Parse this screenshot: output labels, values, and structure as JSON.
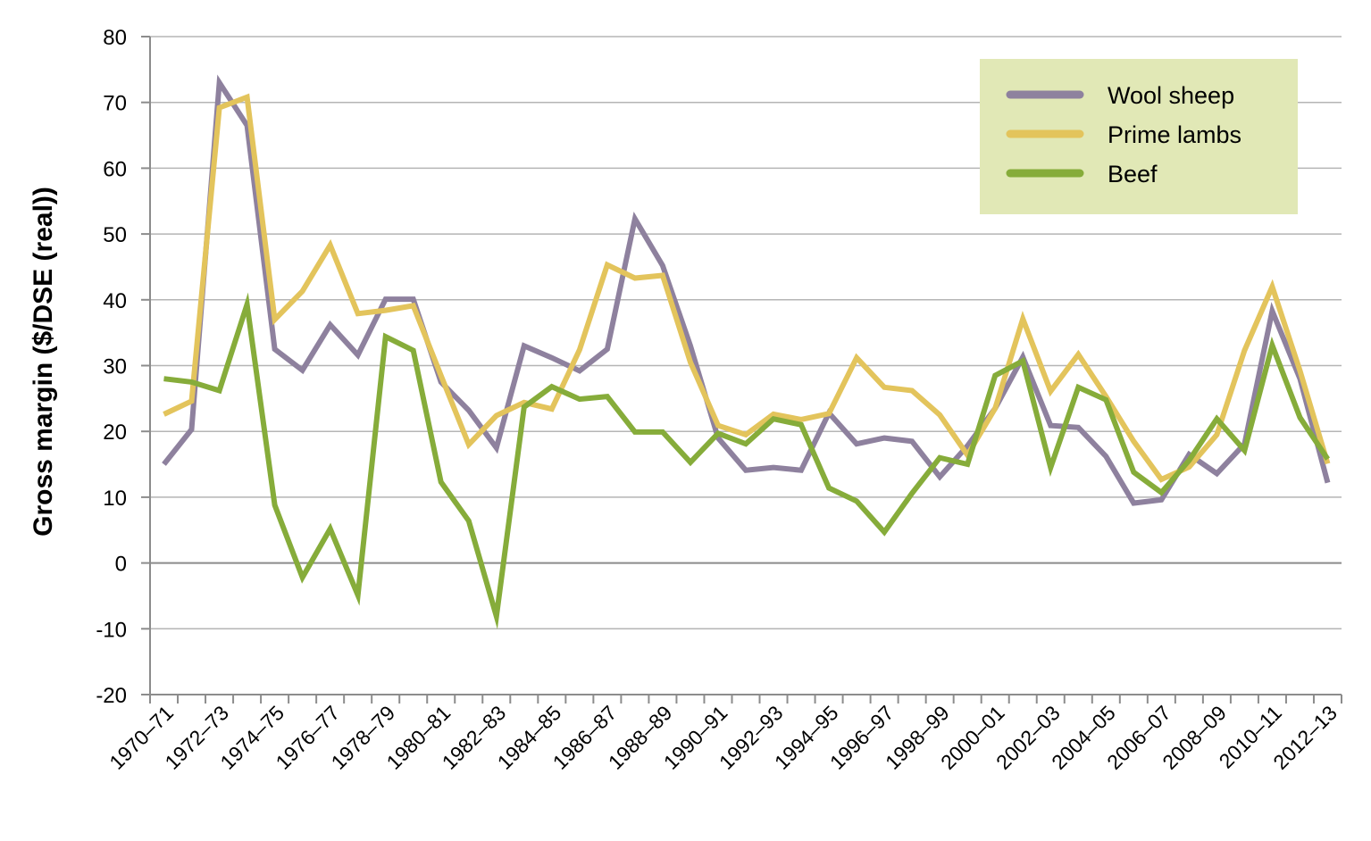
{
  "chart_data": {
    "type": "line",
    "ylabel": "Gross margin ($/DSE (real))",
    "xlabel": "",
    "ylim": [
      -20,
      80
    ],
    "yticks": [
      -20,
      -10,
      0,
      10,
      20,
      30,
      40,
      50,
      60,
      70,
      80
    ],
    "grid": true,
    "legend_position": "top-right",
    "x": [
      "1970–71",
      "1971–72",
      "1972–73",
      "1973–74",
      "1974–75",
      "1975–76",
      "1976–77",
      "1977–78",
      "1978–79",
      "1979–80",
      "1980–81",
      "1981–82",
      "1982–83",
      "1983–84",
      "1984–85",
      "1985–86",
      "1986–87",
      "1987–88",
      "1988–89",
      "1989–90",
      "1990–91",
      "1991–92",
      "1992–93",
      "1993–94",
      "1994–95",
      "1995–96",
      "1996–97",
      "1997–98",
      "1998–99",
      "1999–00",
      "2000–01",
      "2001–02",
      "2002–03",
      "2003–04",
      "2004–05",
      "2005–06",
      "2006–07",
      "2007–08",
      "2008–09",
      "2009–10",
      "2010–11",
      "2011–12",
      "2012–13"
    ],
    "xtick_labels": [
      "1970–71",
      "1972–73",
      "1974–75",
      "1976–77",
      "1978–79",
      "1980–81",
      "1982–83",
      "1984–85",
      "1986–87",
      "1988–89",
      "1990–91",
      "1992–93",
      "1994–95",
      "1996–97",
      "1998–99",
      "2000–01",
      "2002–03",
      "2004–05",
      "2006–07",
      "2008–09",
      "2010–11",
      "2012–13"
    ],
    "series": [
      {
        "name": "Wool sheep",
        "color": "#8e819e",
        "values": [
          15,
          20.3,
          73,
          66.5,
          32.5,
          29.3,
          36.2,
          31.6,
          40.1,
          40.1,
          27.5,
          23.2,
          17.5,
          33,
          31.2,
          29.2,
          32.5,
          52.3,
          45.2,
          33,
          19,
          14.1,
          14.5,
          14.1,
          22.8,
          18.1,
          19,
          18.5,
          13.1,
          17.8,
          23.5,
          31.3,
          20.9,
          20.6,
          16.2,
          9.1,
          9.6,
          16.5,
          13.6,
          18.1,
          38.3,
          28,
          12.2
        ]
      },
      {
        "name": "Prime lambs",
        "color": "#e3c45c",
        "values": [
          22.6,
          24.6,
          69.2,
          70.8,
          37,
          41.3,
          48.3,
          37.9,
          38.4,
          39.1,
          28.5,
          18,
          22.4,
          24.4,
          23.4,
          32.4,
          45.3,
          43.3,
          43.7,
          30.5,
          20.9,
          19.5,
          22.6,
          21.8,
          22.7,
          31.2,
          26.7,
          26.2,
          22.5,
          16.4,
          23.5,
          37.1,
          26.1,
          31.7,
          25.3,
          18.5,
          12.7,
          14.6,
          19.5,
          32.3,
          42,
          29.2,
          15.1
        ]
      },
      {
        "name": "Beef",
        "color": "#86ac3a",
        "values": [
          28,
          27.5,
          26.2,
          39.3,
          8.8,
          -2.2,
          5.2,
          -4.9,
          34.4,
          32.3,
          12.3,
          6.4,
          -8.1,
          23.7,
          26.8,
          24.9,
          25.3,
          19.9,
          19.9,
          15.3,
          19.7,
          18.1,
          21.9,
          21,
          11.4,
          9.4,
          4.7,
          10.6,
          16,
          15,
          28.5,
          30.7,
          14.5,
          26.7,
          24.8,
          13.8,
          10.7,
          15.6,
          21.9,
          17.1,
          33.1,
          22.1,
          15.8
        ]
      }
    ]
  }
}
